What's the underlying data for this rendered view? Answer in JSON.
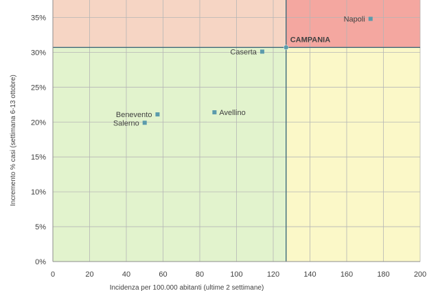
{
  "chart_data": {
    "type": "scatter",
    "title": "",
    "xlabel": "Incidenza per 100.000 abitanti (ultime 2 settimane)",
    "ylabel": "Incremento % casi (settimana 6-13 ottobre)",
    "xlim": [
      0,
      200
    ],
    "ylim": [
      0,
      0.375
    ],
    "x_ticks": [
      0,
      20,
      40,
      60,
      80,
      100,
      120,
      140,
      160,
      180,
      200
    ],
    "x_tick_labels": [
      "0",
      "20",
      "40",
      "60",
      "80",
      "100",
      "120",
      "140",
      "160",
      "180",
      "200"
    ],
    "y_ticks": [
      0,
      0.05,
      0.1,
      0.15,
      0.2,
      0.25,
      0.3,
      0.35
    ],
    "y_tick_labels": [
      "0%",
      "5%",
      "10%",
      "15%",
      "20%",
      "25%",
      "30%",
      "35%"
    ],
    "grid": true,
    "reference_lines": {
      "x": 127,
      "y": 0.307
    },
    "quadrant_colors": {
      "top_left": "#f6d5c4",
      "top_right": "#f4a7a0",
      "bottom_left": "#e2f3cd",
      "bottom_right": "#fbf8c8"
    },
    "marker_color": "#5b9bac",
    "reference_line_color": "#3d6b7a",
    "points": [
      {
        "label": "Napoli",
        "x": 173,
        "y": 0.348,
        "label_side": "left"
      },
      {
        "label": "Caserta",
        "x": 114,
        "y": 0.301,
        "label_side": "left"
      },
      {
        "label": "CAMPANIA",
        "x": 127,
        "y": 0.307,
        "label_side": "right-above",
        "emphasis": true
      },
      {
        "label": "Avellino",
        "x": 88,
        "y": 0.214,
        "label_side": "right"
      },
      {
        "label": "Benevento",
        "x": 57,
        "y": 0.211,
        "label_side": "left"
      },
      {
        "label": "Salerno",
        "x": 50,
        "y": 0.199,
        "label_side": "left"
      }
    ]
  }
}
